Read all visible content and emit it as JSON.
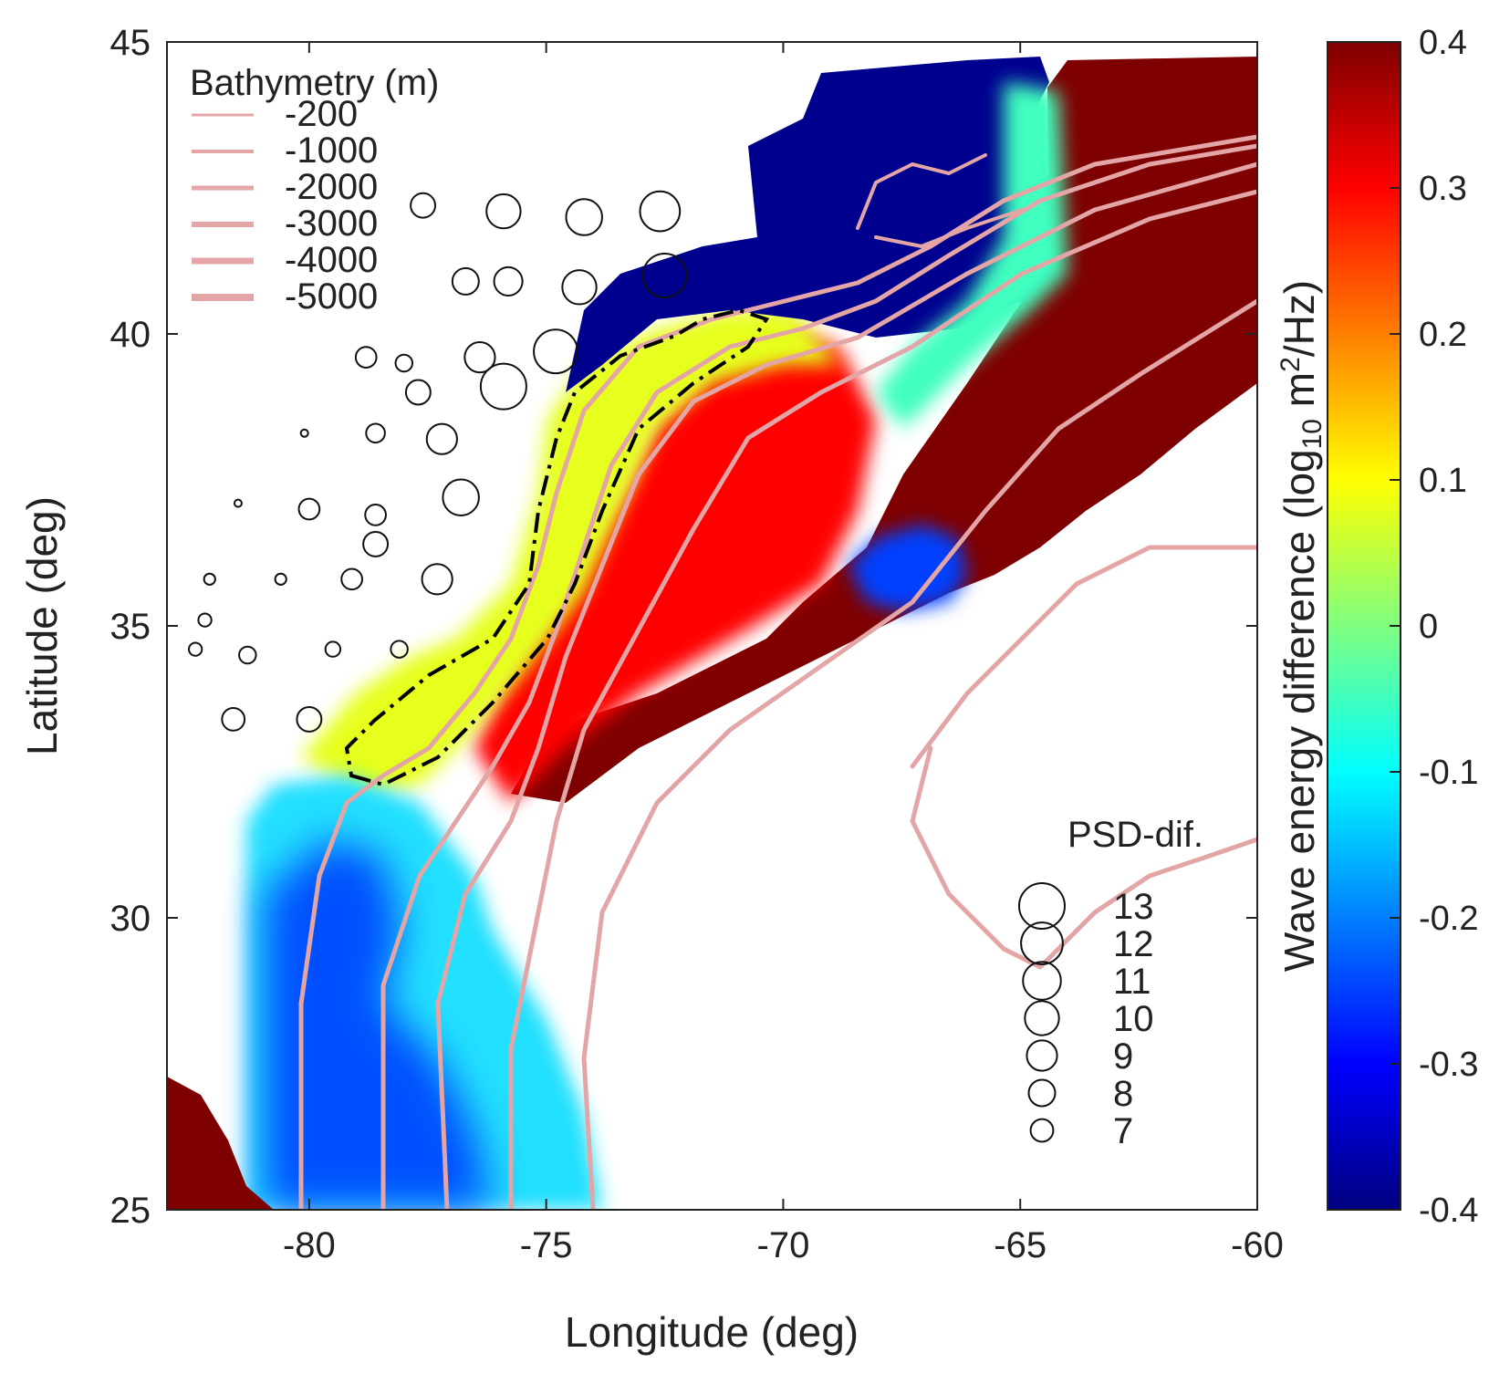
{
  "chart_data": {
    "type": "heatmap",
    "xlabel": "Longitude (deg)",
    "ylabel": "Latitude (deg)",
    "xlim": [
      -83,
      -60
    ],
    "ylim": [
      25,
      45
    ],
    "xticks": [
      {
        "value": -80,
        "label": "-80"
      },
      {
        "value": -75,
        "label": "-75"
      },
      {
        "value": -70,
        "label": "-70"
      },
      {
        "value": -65,
        "label": "-65"
      },
      {
        "value": -60,
        "label": "-60"
      }
    ],
    "yticks": [
      {
        "value": 25,
        "label": "25"
      },
      {
        "value": 30,
        "label": "30"
      },
      {
        "value": 35,
        "label": "35"
      },
      {
        "value": 40,
        "label": "40"
      },
      {
        "value": 45,
        "label": "45"
      }
    ],
    "colorbar": {
      "label": "Wave energy difference (log",
      "label_sub": "10",
      "label_rest": " m",
      "label_sup": "2",
      "label_end": "/Hz)",
      "range": [
        -0.4,
        0.4
      ],
      "ticks": [
        {
          "value": 0.4,
          "label": "0.4"
        },
        {
          "value": 0.3,
          "label": "0.3"
        },
        {
          "value": 0.2,
          "label": "0.2"
        },
        {
          "value": 0.1,
          "label": "0.1"
        },
        {
          "value": 0,
          "label": "0"
        },
        {
          "value": -0.1,
          "label": "-0.1"
        },
        {
          "value": -0.2,
          "label": "-0.2"
        },
        {
          "value": -0.3,
          "label": "-0.3"
        },
        {
          "value": -0.4,
          "label": "-0.4"
        }
      ],
      "colormap": "jet",
      "stops": [
        "#00007f",
        "#0000ff",
        "#007fff",
        "#00ffff",
        "#7fff7f",
        "#ffff00",
        "#ff7f00",
        "#ff0000",
        "#7f0000"
      ]
    },
    "bathymetry_legend": {
      "title": "Bathymetry (m)",
      "line_color": "#e3a5a5",
      "entries": [
        "-200",
        "-1000",
        "-2000",
        "-3000",
        "-4000",
        "-5000"
      ]
    },
    "psd_legend": {
      "title": "PSD-dif.",
      "sizes": [
        13,
        12,
        11,
        10,
        9,
        8,
        7
      ],
      "labels": [
        "13",
        "12",
        "11",
        "10",
        "9",
        "8",
        "7"
      ]
    },
    "stations": [
      {
        "lon": -77.6,
        "lat": 42.2,
        "psd": 7.5
      },
      {
        "lon": -75.9,
        "lat": 42.1,
        "psd": 10
      },
      {
        "lon": -74.2,
        "lat": 42.0,
        "psd": 10.5
      },
      {
        "lon": -72.6,
        "lat": 42.1,
        "psd": 11.5
      },
      {
        "lon": -76.7,
        "lat": 40.9,
        "psd": 8
      },
      {
        "lon": -75.8,
        "lat": 40.9,
        "psd": 8.5
      },
      {
        "lon": -74.3,
        "lat": 40.8,
        "psd": 10
      },
      {
        "lon": -72.5,
        "lat": 41.0,
        "psd": 12.5
      },
      {
        "lon": -78.8,
        "lat": 39.6,
        "psd": 6.5
      },
      {
        "lon": -78.0,
        "lat": 39.5,
        "psd": 5.5
      },
      {
        "lon": -76.4,
        "lat": 39.6,
        "psd": 9
      },
      {
        "lon": -74.8,
        "lat": 39.7,
        "psd": 12.5
      },
      {
        "lon": -75.9,
        "lat": 39.1,
        "psd": 13
      },
      {
        "lon": -77.7,
        "lat": 39.0,
        "psd": 7.5
      },
      {
        "lon": -80.1,
        "lat": 38.3,
        "psd": 3
      },
      {
        "lon": -78.6,
        "lat": 38.3,
        "psd": 6
      },
      {
        "lon": -77.2,
        "lat": 38.2,
        "psd": 9
      },
      {
        "lon": -76.8,
        "lat": 37.2,
        "psd": 10.5
      },
      {
        "lon": -81.5,
        "lat": 37.1,
        "psd": 3
      },
      {
        "lon": -80.0,
        "lat": 37.0,
        "psd": 6.5
      },
      {
        "lon": -78.6,
        "lat": 36.9,
        "psd": 6.5
      },
      {
        "lon": -78.6,
        "lat": 36.4,
        "psd": 7.5
      },
      {
        "lon": -82.1,
        "lat": 35.8,
        "psd": 4
      },
      {
        "lon": -80.6,
        "lat": 35.8,
        "psd": 4
      },
      {
        "lon": -79.1,
        "lat": 35.8,
        "psd": 6.5
      },
      {
        "lon": -77.3,
        "lat": 35.8,
        "psd": 9
      },
      {
        "lon": -82.2,
        "lat": 35.1,
        "psd": 4.5
      },
      {
        "lon": -82.4,
        "lat": 34.6,
        "psd": 4.5
      },
      {
        "lon": -81.3,
        "lat": 34.5,
        "psd": 5.5
      },
      {
        "lon": -79.5,
        "lat": 34.6,
        "psd": 5
      },
      {
        "lon": -78.1,
        "lat": 34.6,
        "psd": 5.5
      },
      {
        "lon": -81.6,
        "lat": 33.4,
        "psd": 7
      },
      {
        "lon": -80.0,
        "lat": 33.4,
        "psd": 7.5
      }
    ]
  }
}
